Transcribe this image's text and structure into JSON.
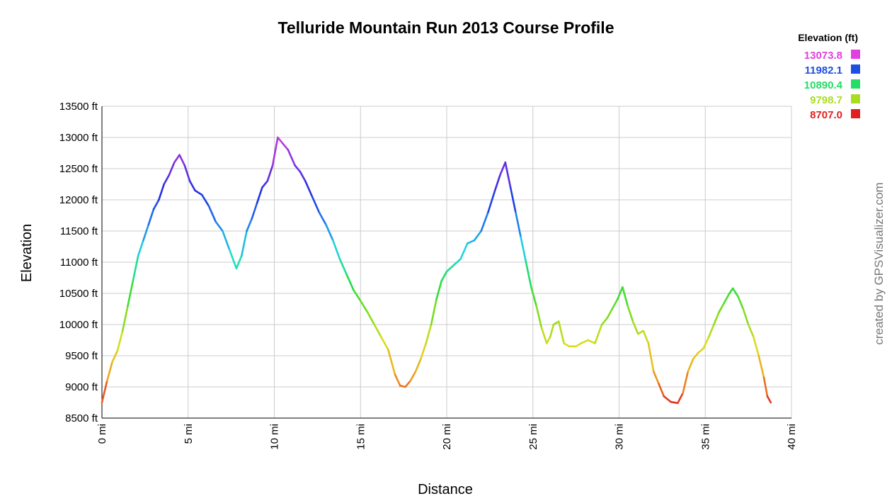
{
  "chart_data": {
    "type": "line",
    "title": "Telluride Mountain Run 2013 Course Profile",
    "xlabel": "Distance",
    "ylabel": "Elevation",
    "xlim": [
      0,
      40
    ],
    "ylim": [
      8500,
      13500
    ],
    "x_ticks": [
      0,
      5,
      10,
      15,
      20,
      25,
      30,
      35,
      40
    ],
    "y_ticks": [
      8500,
      9000,
      9500,
      10000,
      10500,
      11000,
      11500,
      12000,
      12500,
      13000,
      13500
    ],
    "x_tick_labels": [
      "0 mi",
      "5 mi",
      "10 mi",
      "15 mi",
      "20 mi",
      "25 mi",
      "30 mi",
      "35 mi",
      "40 mi"
    ],
    "y_tick_labels": [
      "8500 ft",
      "9000 ft",
      "9500 ft",
      "10000 ft",
      "10500 ft",
      "11000 ft",
      "11500 ft",
      "12000 ft",
      "12500 ft",
      "13000 ft",
      "13500 ft"
    ],
    "grid": true,
    "legend_position": "top-right",
    "legend": {
      "title": "Elevation (ft)",
      "entries": [
        {
          "label": "13073.8",
          "color": "#e040e0"
        },
        {
          "label": "11982.1",
          "color": "#1f4fe0"
        },
        {
          "label": "10890.4",
          "color": "#22dd66"
        },
        {
          "label": "9798.7",
          "color": "#aadd22"
        },
        {
          "label": "8707.0",
          "color": "#e02020"
        }
      ]
    },
    "color_scale": {
      "min": 8707.0,
      "max": 13073.8,
      "stops": [
        "#e02020",
        "#f0a020",
        "#dddd20",
        "#80dd20",
        "#20dd40",
        "#20dddd",
        "#2080ee",
        "#1f30e0",
        "#8030e0",
        "#e040e0"
      ]
    },
    "series": [
      {
        "x": [
          0.0,
          0.3,
          0.6,
          0.9,
          1.2,
          1.5,
          1.8,
          2.1,
          2.4,
          2.7,
          3.0,
          3.3,
          3.6,
          3.9,
          4.2,
          4.5,
          4.8,
          5.1,
          5.4,
          5.8,
          6.2,
          6.6,
          7.0,
          7.4,
          7.8,
          8.1,
          8.4,
          8.7,
          9.0,
          9.3,
          9.6,
          9.9,
          10.2,
          10.5,
          10.8,
          11.2,
          11.5,
          11.8,
          12.2,
          12.6,
          13.0,
          13.4,
          13.8,
          14.2,
          14.6,
          15.0,
          15.4,
          15.8,
          16.2,
          16.6,
          17.0,
          17.3,
          17.6,
          17.9,
          18.2,
          18.5,
          18.8,
          19.1,
          19.4,
          19.7,
          20.0,
          20.4,
          20.8,
          21.2,
          21.6,
          22.0,
          22.4,
          22.8,
          23.1,
          23.4,
          23.7,
          24.0,
          24.3,
          24.6,
          24.9,
          25.2,
          25.5,
          25.8,
          26.0,
          26.2,
          26.5,
          26.8,
          27.1,
          27.5,
          27.8,
          28.2,
          28.6,
          29.0,
          29.3,
          29.6,
          29.9,
          30.2,
          30.5,
          30.8,
          31.1,
          31.4,
          31.7,
          32.0,
          32.3,
          32.6,
          33.0,
          33.4,
          33.7,
          34.0,
          34.3,
          34.6,
          34.9,
          35.2,
          35.5,
          35.8,
          36.1,
          36.4,
          36.6,
          36.9,
          37.2,
          37.5,
          37.8,
          38.1,
          38.4,
          38.6,
          38.8
        ],
        "y": [
          8750,
          9100,
          9400,
          9580,
          9900,
          10300,
          10700,
          11100,
          11350,
          11600,
          11850,
          12000,
          12250,
          12400,
          12600,
          12720,
          12550,
          12300,
          12150,
          12080,
          11900,
          11650,
          11500,
          11200,
          10900,
          11100,
          11500,
          11700,
          11950,
          12200,
          12300,
          12550,
          13000,
          12900,
          12800,
          12550,
          12450,
          12300,
          12050,
          11800,
          11600,
          11350,
          11050,
          10800,
          10550,
          10380,
          10200,
          10000,
          9800,
          9600,
          9200,
          9020,
          9000,
          9100,
          9250,
          9450,
          9700,
          10000,
          10400,
          10700,
          10850,
          10950,
          11050,
          11300,
          11350,
          11500,
          11800,
          12150,
          12400,
          12600,
          12200,
          11800,
          11400,
          11000,
          10600,
          10300,
          9950,
          9700,
          9800,
          10000,
          10050,
          9700,
          9650,
          9650,
          9700,
          9750,
          9700,
          10000,
          10100,
          10250,
          10400,
          10600,
          10300,
          10050,
          9850,
          9900,
          9700,
          9250,
          9050,
          8850,
          8760,
          8740,
          8900,
          9250,
          9450,
          9550,
          9620,
          9800,
          10000,
          10200,
          10350,
          10500,
          10580,
          10450,
          10250,
          10000,
          9800,
          9500,
          9150,
          8850,
          8750
        ]
      }
    ],
    "credit": "created by GPSVisualizer.com"
  }
}
